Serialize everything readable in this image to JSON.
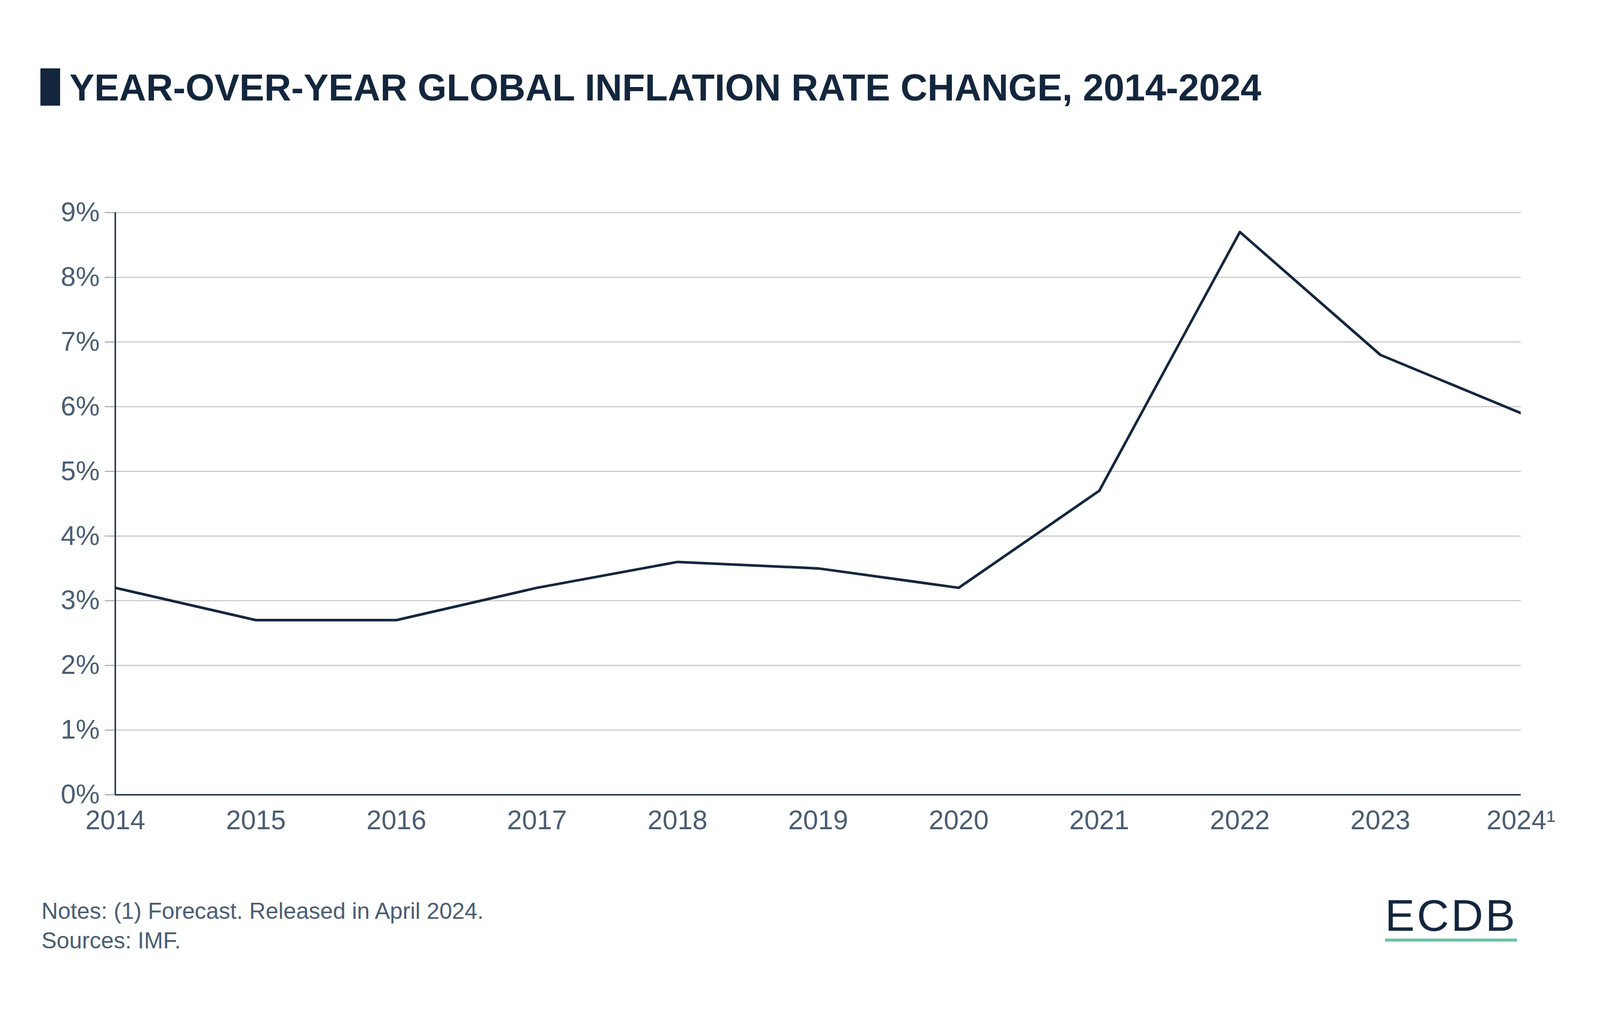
{
  "chart_data": {
    "type": "line",
    "title": "YEAR-OVER-YEAR GLOBAL INFLATION RATE CHANGE, 2014-2024",
    "x": [
      2014,
      2015,
      2016,
      2017,
      2018,
      2019,
      2020,
      2021,
      2022,
      2023,
      2024
    ],
    "values": [
      3.2,
      2.7,
      2.7,
      3.2,
      3.6,
      3.5,
      3.2,
      4.7,
      8.7,
      6.8,
      5.9
    ],
    "color": "#13263d",
    "xlim": [
      2014,
      2024
    ],
    "xticks": [
      2014,
      2015,
      2016,
      2017,
      2018,
      2019,
      2020,
      2021,
      2022,
      2023,
      {
        "value": 2024,
        "label": "2024¹"
      }
    ],
    "ylim": [
      0,
      9
    ],
    "yticks": [
      {
        "value": 0,
        "label": "0%"
      },
      {
        "value": 1,
        "label": "1%"
      },
      {
        "value": 2,
        "label": "2%"
      },
      {
        "value": 3,
        "label": "3%"
      },
      {
        "value": 4,
        "label": "4%"
      },
      {
        "value": 5,
        "label": "5%"
      },
      {
        "value": 6,
        "label": "6%"
      },
      {
        "value": 7,
        "label": "7%"
      },
      {
        "value": 8,
        "label": "8%"
      },
      {
        "value": 9,
        "label": "9%"
      }
    ],
    "grid": true,
    "notes": [
      "Notes: (1) Forecast. Released in April 2024.",
      "Sources: IMF."
    ],
    "logo": "ECDB"
  }
}
